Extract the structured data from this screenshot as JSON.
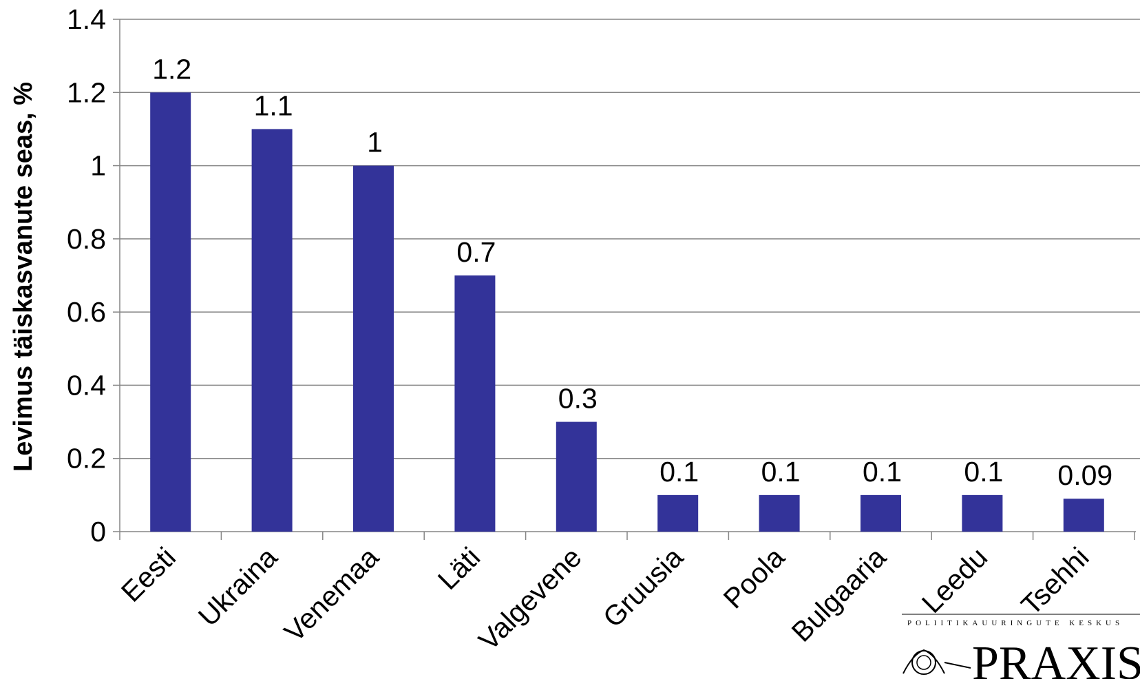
{
  "chart_data": {
    "type": "bar",
    "title": "",
    "xlabel": "",
    "ylabel": "Levimus täiskasvanute seas, %",
    "categories": [
      "Eesti",
      "Ukraina",
      "Venemaa",
      "Läti",
      "Valgevene",
      "Gruusia",
      "Poola",
      "Bulgaaria",
      "Leedu",
      "Tsehhi"
    ],
    "values": [
      1.2,
      1.1,
      1,
      0.7,
      0.3,
      0.1,
      0.1,
      0.1,
      0.1,
      0.09
    ],
    "value_labels": [
      "1.2",
      "1.1",
      "1",
      "0.7",
      "0.3",
      "0.1",
      "0.1",
      "0.1",
      "0.1",
      "0.09"
    ],
    "ylim": [
      0,
      1.4
    ],
    "yticks": [
      0,
      0.2,
      0.4,
      0.6,
      0.8,
      1,
      1.2,
      1.4
    ],
    "ytick_labels": [
      "0",
      "0.2",
      "0.4",
      "0.6",
      "0.8",
      "1",
      "1.2",
      "1.4"
    ],
    "grid": true,
    "legend": "none",
    "bar_color": "#333399"
  },
  "logo": {
    "caption": "POLIITIKAUURINGUTE KESKUS",
    "name": "PRAXIS"
  }
}
